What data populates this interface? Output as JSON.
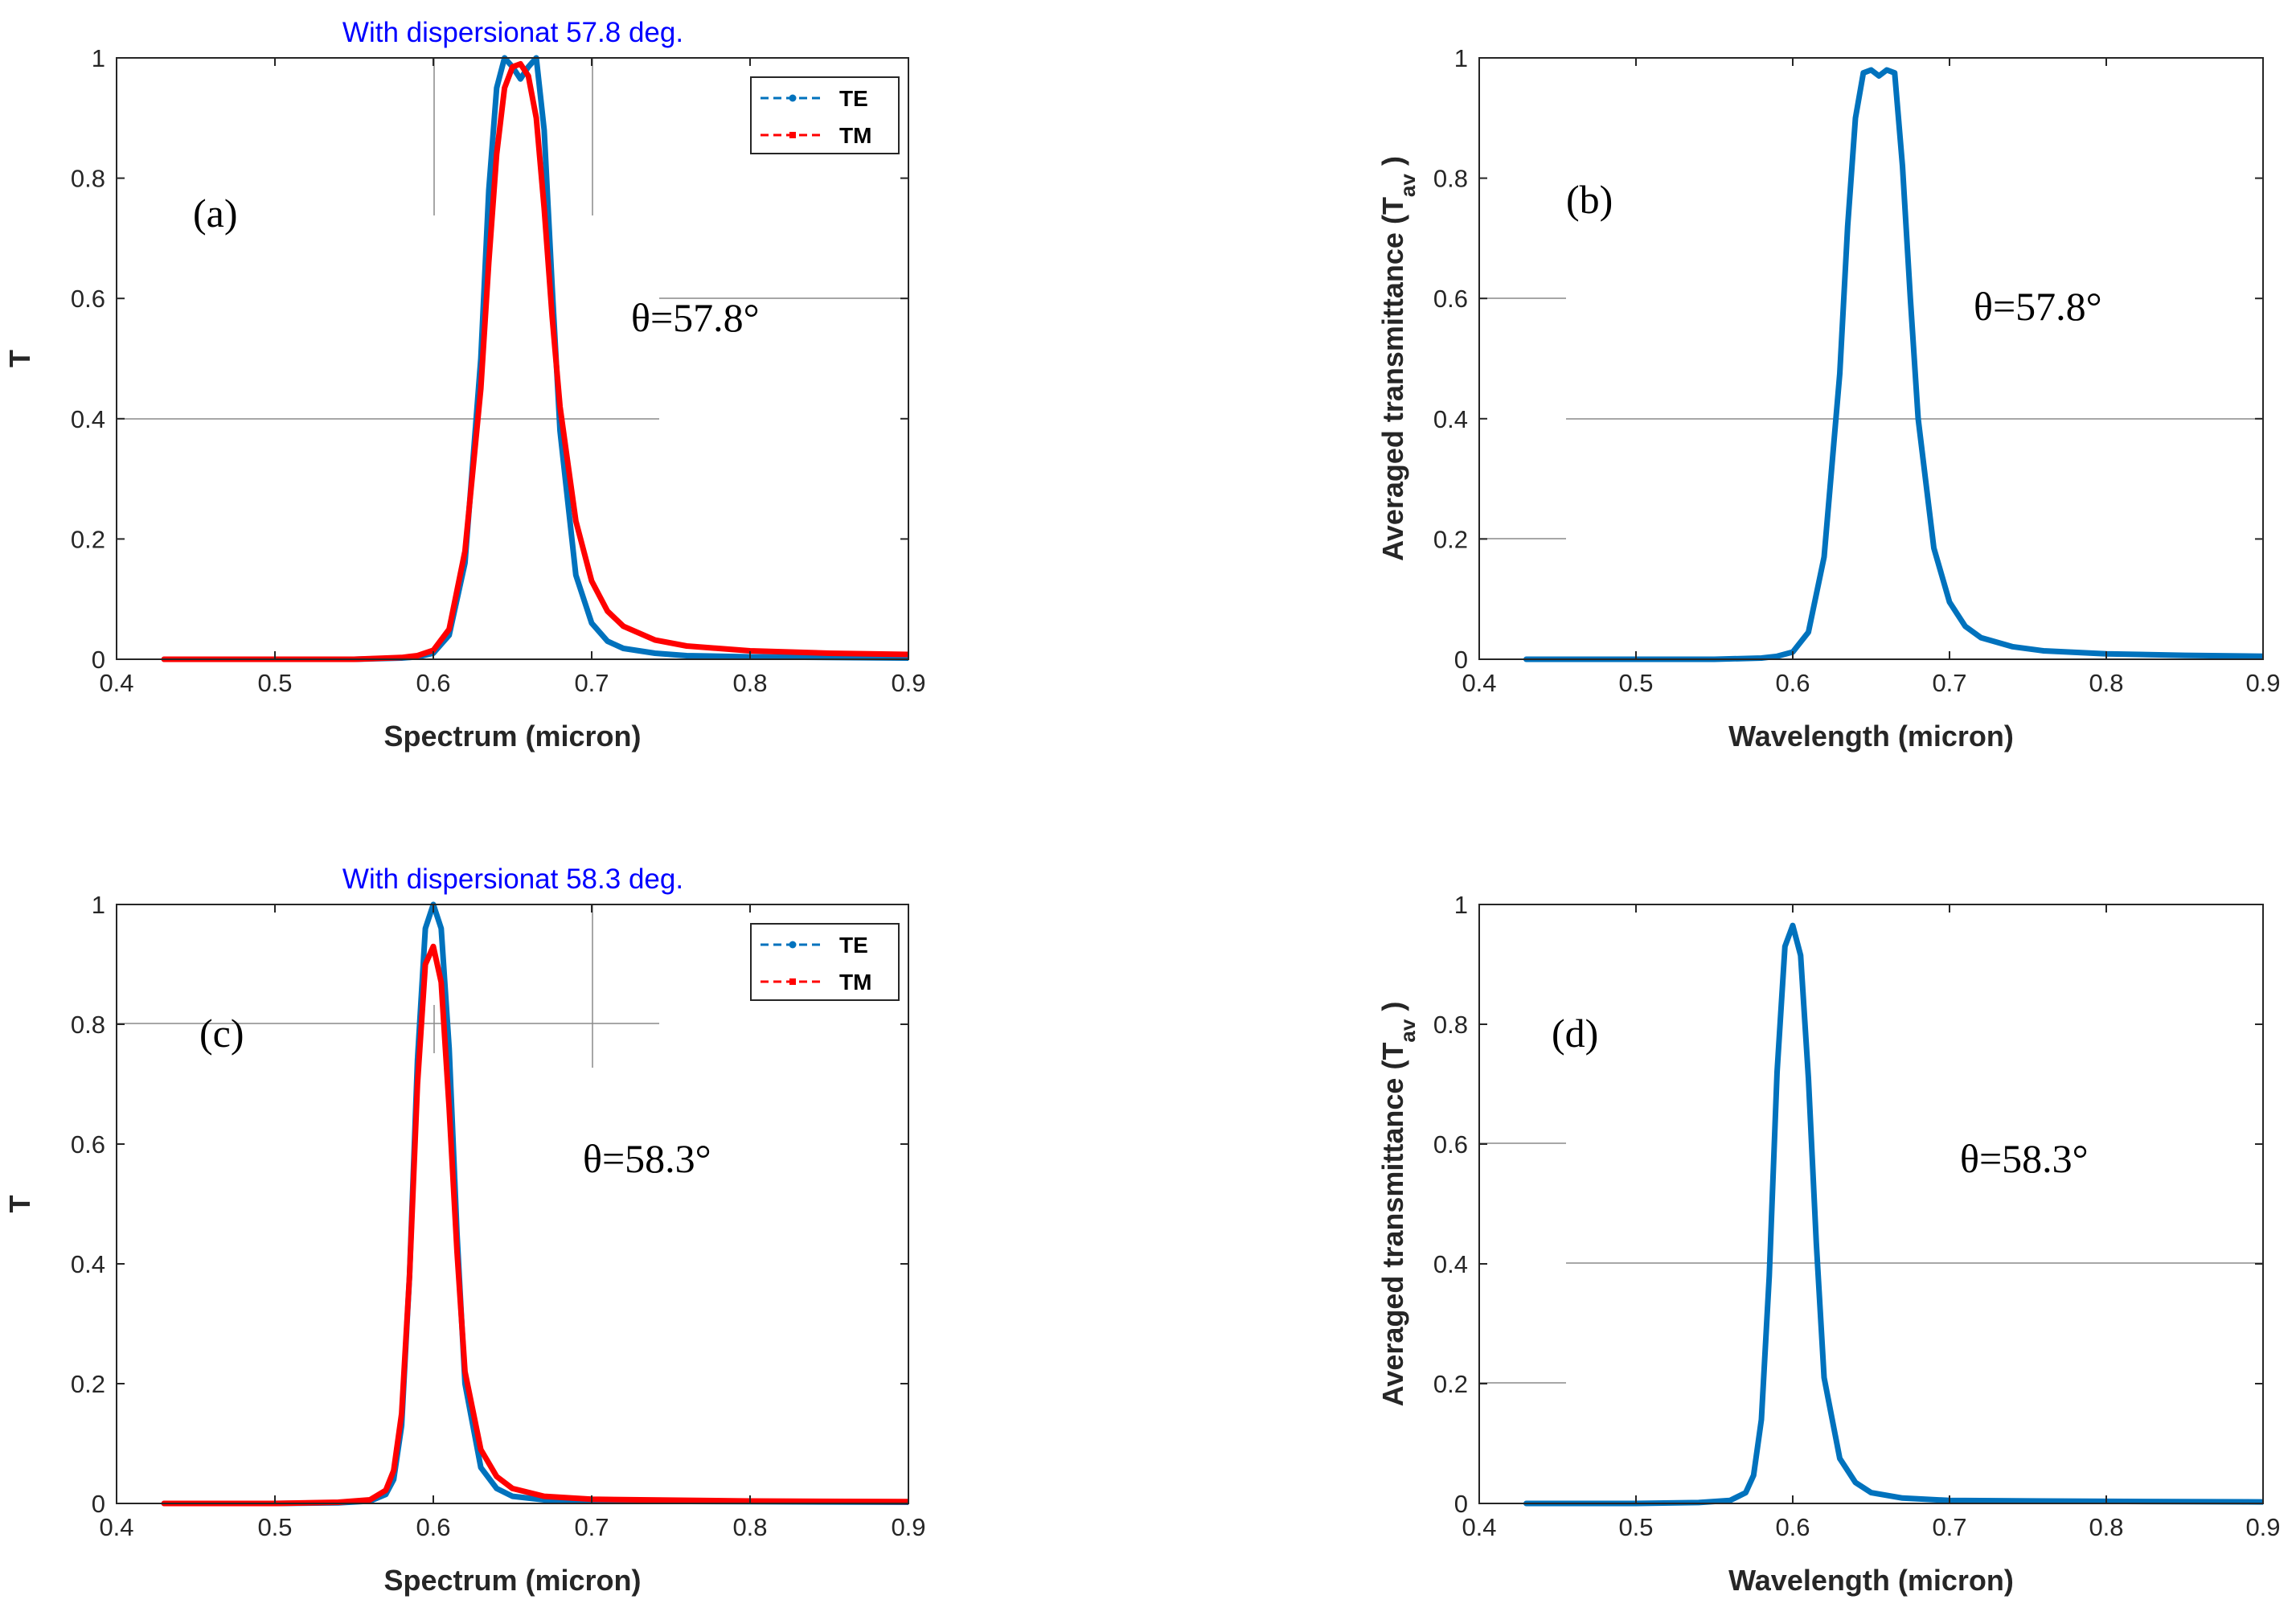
{
  "colors": {
    "te": "#0072BD",
    "tm": "#FF0000",
    "title": "#0000FF",
    "axis": "#262626"
  },
  "chart_data": [
    {
      "id": "a",
      "type": "line",
      "title": "With dispersionat 57.8  deg.",
      "xlabel": "Spectrum (micron)",
      "ylabel": "T",
      "panel_label": "(a)",
      "annotation": "θ=57.8°",
      "xlim": [
        0.4,
        0.9
      ],
      "ylim": [
        0,
        1
      ],
      "xticks": [
        "0.4",
        "0.5",
        "0.6",
        "0.7",
        "0.8",
        "0.9"
      ],
      "yticks": [
        "0",
        "0.2",
        "0.4",
        "0.6",
        "0.8",
        "1"
      ],
      "legend": [
        "TE",
        "TM"
      ],
      "series": [
        {
          "name": "TE",
          "x": [
            0.43,
            0.5,
            0.55,
            0.58,
            0.59,
            0.6,
            0.61,
            0.62,
            0.63,
            0.635,
            0.64,
            0.645,
            0.65,
            0.655,
            0.66,
            0.665,
            0.67,
            0.675,
            0.68,
            0.69,
            0.7,
            0.71,
            0.72,
            0.74,
            0.76,
            0.8,
            0.85,
            0.9
          ],
          "values": [
            0,
            0,
            0,
            0.002,
            0.004,
            0.01,
            0.04,
            0.16,
            0.5,
            0.78,
            0.95,
            1.0,
            0.985,
            0.965,
            0.985,
            1.0,
            0.88,
            0.62,
            0.38,
            0.14,
            0.06,
            0.03,
            0.018,
            0.01,
            0.006,
            0.004,
            0.003,
            0.002
          ]
        },
        {
          "name": "TM",
          "x": [
            0.43,
            0.5,
            0.55,
            0.58,
            0.59,
            0.6,
            0.61,
            0.62,
            0.63,
            0.635,
            0.64,
            0.645,
            0.65,
            0.655,
            0.66,
            0.665,
            0.67,
            0.675,
            0.68,
            0.69,
            0.7,
            0.71,
            0.72,
            0.74,
            0.76,
            0.8,
            0.85,
            0.9
          ],
          "values": [
            0,
            0,
            0,
            0.003,
            0.006,
            0.015,
            0.05,
            0.18,
            0.45,
            0.66,
            0.84,
            0.95,
            0.985,
            0.99,
            0.97,
            0.9,
            0.75,
            0.57,
            0.42,
            0.23,
            0.13,
            0.08,
            0.055,
            0.032,
            0.022,
            0.014,
            0.01,
            0.008
          ]
        }
      ]
    },
    {
      "id": "b",
      "type": "line",
      "xlabel": "Wavelength (micron)",
      "ylabel": "Averaged transmittance (T",
      "ylabel_sub": "av",
      "ylabel_end": " )",
      "panel_label": "(b)",
      "annotation": "θ=57.8°",
      "xlim": [
        0.4,
        0.9
      ],
      "ylim": [
        0,
        1
      ],
      "xticks": [
        "0.4",
        "0.5",
        "0.6",
        "0.7",
        "0.8",
        "0.9"
      ],
      "yticks": [
        "0",
        "0.2",
        "0.4",
        "0.6",
        "0.8",
        "1"
      ],
      "series": [
        {
          "name": "Tav",
          "x": [
            0.43,
            0.5,
            0.55,
            0.58,
            0.59,
            0.6,
            0.61,
            0.62,
            0.63,
            0.635,
            0.64,
            0.645,
            0.65,
            0.655,
            0.66,
            0.665,
            0.67,
            0.675,
            0.68,
            0.69,
            0.7,
            0.71,
            0.72,
            0.74,
            0.76,
            0.8,
            0.85,
            0.9
          ],
          "values": [
            0,
            0,
            0,
            0.002,
            0.005,
            0.012,
            0.045,
            0.17,
            0.475,
            0.72,
            0.9,
            0.975,
            0.98,
            0.97,
            0.98,
            0.975,
            0.82,
            0.6,
            0.4,
            0.185,
            0.095,
            0.055,
            0.036,
            0.021,
            0.014,
            0.009,
            0.0065,
            0.005
          ]
        }
      ]
    },
    {
      "id": "c",
      "type": "line",
      "title": "With dispersionat 58.3  deg.",
      "xlabel": "Spectrum (micron)",
      "ylabel": "T",
      "panel_label": "(c)",
      "annotation": "θ=58.3°",
      "xlim": [
        0.4,
        0.9
      ],
      "ylim": [
        0,
        1
      ],
      "xticks": [
        "0.4",
        "0.5",
        "0.6",
        "0.7",
        "0.8",
        "0.9"
      ],
      "yticks": [
        "0",
        "0.2",
        "0.4",
        "0.6",
        "0.8",
        "1"
      ],
      "legend": [
        "TE",
        "TM"
      ],
      "series": [
        {
          "name": "TE",
          "x": [
            0.43,
            0.5,
            0.54,
            0.56,
            0.57,
            0.575,
            0.58,
            0.585,
            0.59,
            0.595,
            0.6,
            0.605,
            0.61,
            0.615,
            0.62,
            0.63,
            0.64,
            0.65,
            0.67,
            0.7,
            0.8,
            0.9
          ],
          "values": [
            0,
            0,
            0.001,
            0.004,
            0.015,
            0.04,
            0.13,
            0.38,
            0.74,
            0.96,
            1.0,
            0.96,
            0.76,
            0.45,
            0.2,
            0.06,
            0.025,
            0.012,
            0.006,
            0.004,
            0.003,
            0.002
          ]
        },
        {
          "name": "TM",
          "x": [
            0.43,
            0.5,
            0.54,
            0.56,
            0.57,
            0.575,
            0.58,
            0.585,
            0.59,
            0.595,
            0.6,
            0.605,
            0.61,
            0.615,
            0.62,
            0.63,
            0.64,
            0.65,
            0.67,
            0.7,
            0.8,
            0.9
          ],
          "values": [
            0,
            0,
            0.002,
            0.006,
            0.022,
            0.055,
            0.15,
            0.38,
            0.7,
            0.9,
            0.93,
            0.87,
            0.66,
            0.42,
            0.22,
            0.09,
            0.045,
            0.025,
            0.012,
            0.007,
            0.004,
            0.003
          ]
        }
      ]
    },
    {
      "id": "d",
      "type": "line",
      "xlabel": "Wavelength (micron)",
      "ylabel": "Averaged transmittance (T",
      "ylabel_sub": "av",
      "ylabel_end": " )",
      "panel_label": "(d)",
      "annotation": "θ=58.3°",
      "xlim": [
        0.4,
        0.9
      ],
      "ylim": [
        0,
        1
      ],
      "xticks": [
        "0.4",
        "0.5",
        "0.6",
        "0.7",
        "0.8",
        "0.9"
      ],
      "yticks": [
        "0",
        "0.2",
        "0.4",
        "0.6",
        "0.8",
        "1"
      ],
      "series": [
        {
          "name": "Tav",
          "x": [
            0.43,
            0.5,
            0.54,
            0.56,
            0.57,
            0.575,
            0.58,
            0.585,
            0.59,
            0.595,
            0.6,
            0.605,
            0.61,
            0.615,
            0.62,
            0.63,
            0.64,
            0.65,
            0.67,
            0.7,
            0.8,
            0.9
          ],
          "values": [
            0,
            0,
            0.0015,
            0.005,
            0.018,
            0.047,
            0.14,
            0.38,
            0.72,
            0.93,
            0.965,
            0.915,
            0.71,
            0.435,
            0.21,
            0.075,
            0.035,
            0.018,
            0.009,
            0.005,
            0.0035,
            0.0025
          ]
        }
      ]
    }
  ]
}
